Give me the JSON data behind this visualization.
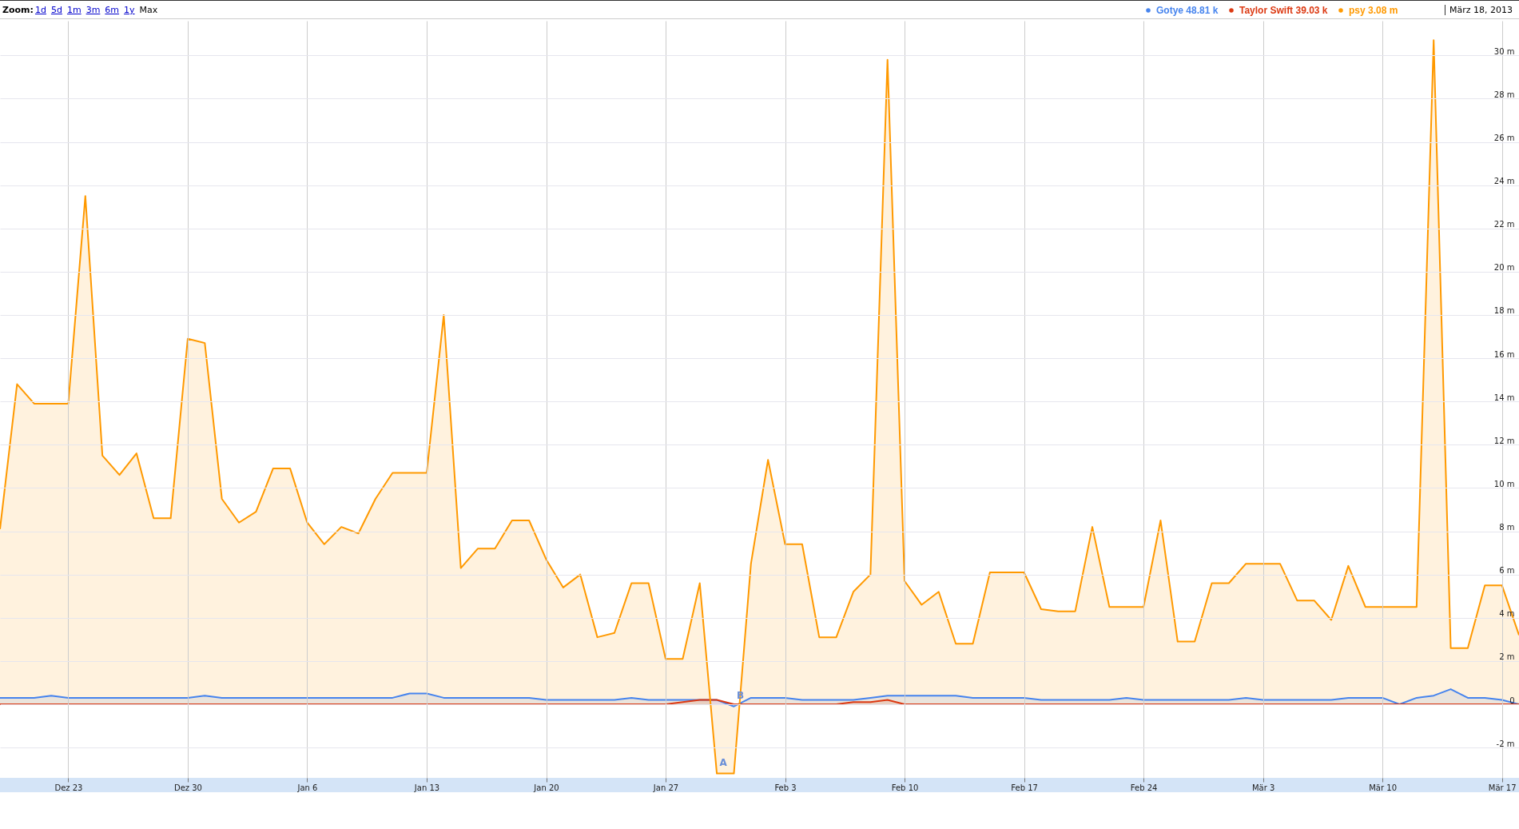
{
  "chart_data": {
    "type": "area",
    "subtitle": "März 18, 2013",
    "annotations": [
      "Zoom:",
      "1d",
      "5d",
      "1m",
      "3m",
      "6m",
      "1y",
      "Max",
      {
        "text": "A",
        "x": "2013-01-30",
        "y": -3.2
      },
      {
        "text": "B",
        "x": "2013-01-31",
        "y": -0.1
      }
    ],
    "x": [
      "2012-12-19",
      "2012-12-20",
      "2012-12-21",
      "2012-12-22",
      "2012-12-23",
      "2012-12-24",
      "2012-12-25",
      "2012-12-26",
      "2012-12-27",
      "2012-12-28",
      "2012-12-29",
      "2012-12-30",
      "2012-12-31",
      "2013-01-01",
      "2013-01-02",
      "2013-01-03",
      "2013-01-04",
      "2013-01-05",
      "2013-01-06",
      "2013-01-07",
      "2013-01-08",
      "2013-01-09",
      "2013-01-10",
      "2013-01-11",
      "2013-01-12",
      "2013-01-13",
      "2013-01-14",
      "2013-01-15",
      "2013-01-16",
      "2013-01-17",
      "2013-01-18",
      "2013-01-19",
      "2013-01-20",
      "2013-01-21",
      "2013-01-22",
      "2013-01-23",
      "2013-01-24",
      "2013-01-25",
      "2013-01-26",
      "2013-01-27",
      "2013-01-28",
      "2013-01-29",
      "2013-01-30",
      "2013-01-31",
      "2013-02-01",
      "2013-02-02",
      "2013-02-03",
      "2013-02-04",
      "2013-02-05",
      "2013-02-06",
      "2013-02-07",
      "2013-02-08",
      "2013-02-09",
      "2013-02-10",
      "2013-02-11",
      "2013-02-12",
      "2013-02-13",
      "2013-02-14",
      "2013-02-15",
      "2013-02-16",
      "2013-02-17",
      "2013-02-18",
      "2013-02-19",
      "2013-02-20",
      "2013-02-21",
      "2013-02-22",
      "2013-02-23",
      "2013-02-24",
      "2013-02-25",
      "2013-02-26",
      "2013-02-27",
      "2013-02-28",
      "2013-03-01",
      "2013-03-02",
      "2013-03-03",
      "2013-03-04",
      "2013-03-05",
      "2013-03-06",
      "2013-03-07",
      "2013-03-08",
      "2013-03-09",
      "2013-03-10",
      "2013-03-11",
      "2013-03-12",
      "2013-03-13",
      "2013-03-14",
      "2013-03-15",
      "2013-03-16",
      "2013-03-17",
      "2013-03-18"
    ],
    "series": [
      {
        "name": "Gotye 48.81 k",
        "color": "#4684ee",
        "values": [
          0.3,
          0.3,
          0.3,
          0.4,
          0.3,
          0.3,
          0.3,
          0.3,
          0.3,
          0.3,
          0.3,
          0.3,
          0.4,
          0.3,
          0.3,
          0.3,
          0.3,
          0.3,
          0.3,
          0.3,
          0.3,
          0.3,
          0.3,
          0.3,
          0.5,
          0.5,
          0.3,
          0.3,
          0.3,
          0.3,
          0.3,
          0.3,
          0.2,
          0.2,
          0.2,
          0.2,
          0.2,
          0.3,
          0.2,
          0.2,
          0.2,
          0.2,
          0.2,
          -0.1,
          0.3,
          0.3,
          0.3,
          0.2,
          0.2,
          0.2,
          0.2,
          0.3,
          0.4,
          0.4,
          0.4,
          0.4,
          0.4,
          0.3,
          0.3,
          0.3,
          0.3,
          0.2,
          0.2,
          0.2,
          0.2,
          0.2,
          0.3,
          0.2,
          0.2,
          0.2,
          0.2,
          0.2,
          0.2,
          0.3,
          0.2,
          0.2,
          0.2,
          0.2,
          0.2,
          0.3,
          0.3,
          0.3,
          0.0,
          0.3,
          0.4,
          0.7,
          0.3,
          0.3,
          0.2,
          0.0
        ]
      },
      {
        "name": "Taylor Swift 39.03 k",
        "color": "#dc3912",
        "values": [
          0.0,
          0.0,
          0.0,
          0.0,
          0.0,
          0.0,
          0.0,
          0.0,
          0.0,
          0.0,
          0.0,
          0.0,
          0.0,
          0.0,
          0.0,
          0.0,
          0.0,
          0.0,
          0.0,
          0.0,
          0.0,
          0.0,
          0.0,
          0.0,
          0.0,
          0.0,
          0.0,
          0.0,
          0.0,
          0.0,
          0.0,
          0.0,
          0.0,
          0.0,
          0.0,
          0.0,
          0.0,
          0.0,
          0.0,
          0.0,
          0.1,
          0.2,
          0.2,
          0.0,
          0.0,
          0.0,
          0.0,
          0.0,
          0.0,
          0.0,
          0.1,
          0.1,
          0.2,
          0.0,
          0.0,
          0.0,
          0.0,
          0.0,
          0.0,
          0.0,
          0.0,
          0.0,
          0.0,
          0.0,
          0.0,
          0.0,
          0.0,
          0.0,
          0.0,
          0.0,
          0.0,
          0.0,
          0.0,
          0.0,
          0.0,
          0.0,
          0.0,
          0.0,
          0.0,
          0.0,
          0.0,
          0.0,
          0.0,
          0.0,
          0.0,
          0.0,
          0.0,
          0.0,
          0.0,
          0.0
        ]
      },
      {
        "name": "psy 3.08 m",
        "color": "#ff9900",
        "values": [
          8.1,
          14.8,
          13.9,
          13.9,
          13.9,
          23.5,
          11.5,
          10.6,
          11.6,
          8.6,
          8.6,
          16.9,
          16.7,
          9.5,
          8.4,
          8.9,
          10.9,
          10.9,
          8.4,
          7.4,
          8.2,
          7.9,
          9.5,
          10.7,
          10.7,
          10.7,
          18.0,
          6.3,
          7.2,
          7.2,
          8.5,
          8.5,
          6.7,
          5.4,
          6.0,
          3.1,
          3.3,
          5.6,
          5.6,
          2.1,
          2.1,
          5.6,
          -3.2,
          -3.2,
          6.5,
          11.3,
          7.4,
          7.4,
          3.1,
          3.1,
          5.2,
          6.0,
          29.8,
          5.7,
          4.6,
          5.2,
          2.8,
          2.8,
          6.1,
          6.1,
          6.1,
          4.4,
          4.3,
          4.3,
          8.2,
          4.5,
          4.5,
          4.5,
          8.5,
          2.9,
          2.9,
          5.6,
          5.6,
          6.5,
          6.5,
          6.5,
          4.8,
          4.8,
          3.9,
          6.4,
          4.5,
          4.5,
          4.5,
          4.5,
          30.7,
          2.6,
          2.6,
          5.5,
          5.5,
          3.2
        ]
      }
    ],
    "xlim": [
      "2012-12-19",
      "2013-03-18"
    ],
    "xticks": [
      {
        "value": "2012-12-23",
        "label": "Dez 23"
      },
      {
        "value": "2012-12-30",
        "label": "Dez 30"
      },
      {
        "value": "2013-01-06",
        "label": "Jan 6"
      },
      {
        "value": "2013-01-13",
        "label": "Jan 13"
      },
      {
        "value": "2013-01-20",
        "label": "Jan 20"
      },
      {
        "value": "2013-01-27",
        "label": "Jan 27"
      },
      {
        "value": "2013-02-03",
        "label": "Feb 3"
      },
      {
        "value": "2013-02-10",
        "label": "Feb 10"
      },
      {
        "value": "2013-02-17",
        "label": "Feb 17"
      },
      {
        "value": "2013-02-24",
        "label": "Feb 24"
      },
      {
        "value": "2013-03-03",
        "label": "Mär 3"
      },
      {
        "value": "2013-03-10",
        "label": "Mär 10"
      },
      {
        "value": "2013-03-17",
        "label": "Mär 17"
      }
    ],
    "ylim": [
      -3.4,
      31.6
    ],
    "yticks": [
      {
        "value": -2,
        "label": "-2 m"
      },
      0,
      {
        "value": 2,
        "label": "2 m"
      },
      {
        "value": 4,
        "label": "4 m"
      },
      {
        "value": 6,
        "label": "6 m"
      },
      {
        "value": 8,
        "label": "8 m"
      },
      {
        "value": 10,
        "label": "10 m"
      },
      {
        "value": 12,
        "label": "12 m"
      },
      {
        "value": 14,
        "label": "14 m"
      },
      {
        "value": 16,
        "label": "16 m"
      },
      {
        "value": 18,
        "label": "18 m"
      },
      {
        "value": 20,
        "label": "20 m"
      },
      {
        "value": 22,
        "label": "22 m"
      },
      {
        "value": 24,
        "label": "24 m"
      },
      {
        "value": 26,
        "label": "26 m"
      },
      {
        "value": 28,
        "label": "28 m"
      },
      {
        "value": 30,
        "label": "30 m"
      }
    ],
    "grid": true,
    "legend": "top right"
  }
}
